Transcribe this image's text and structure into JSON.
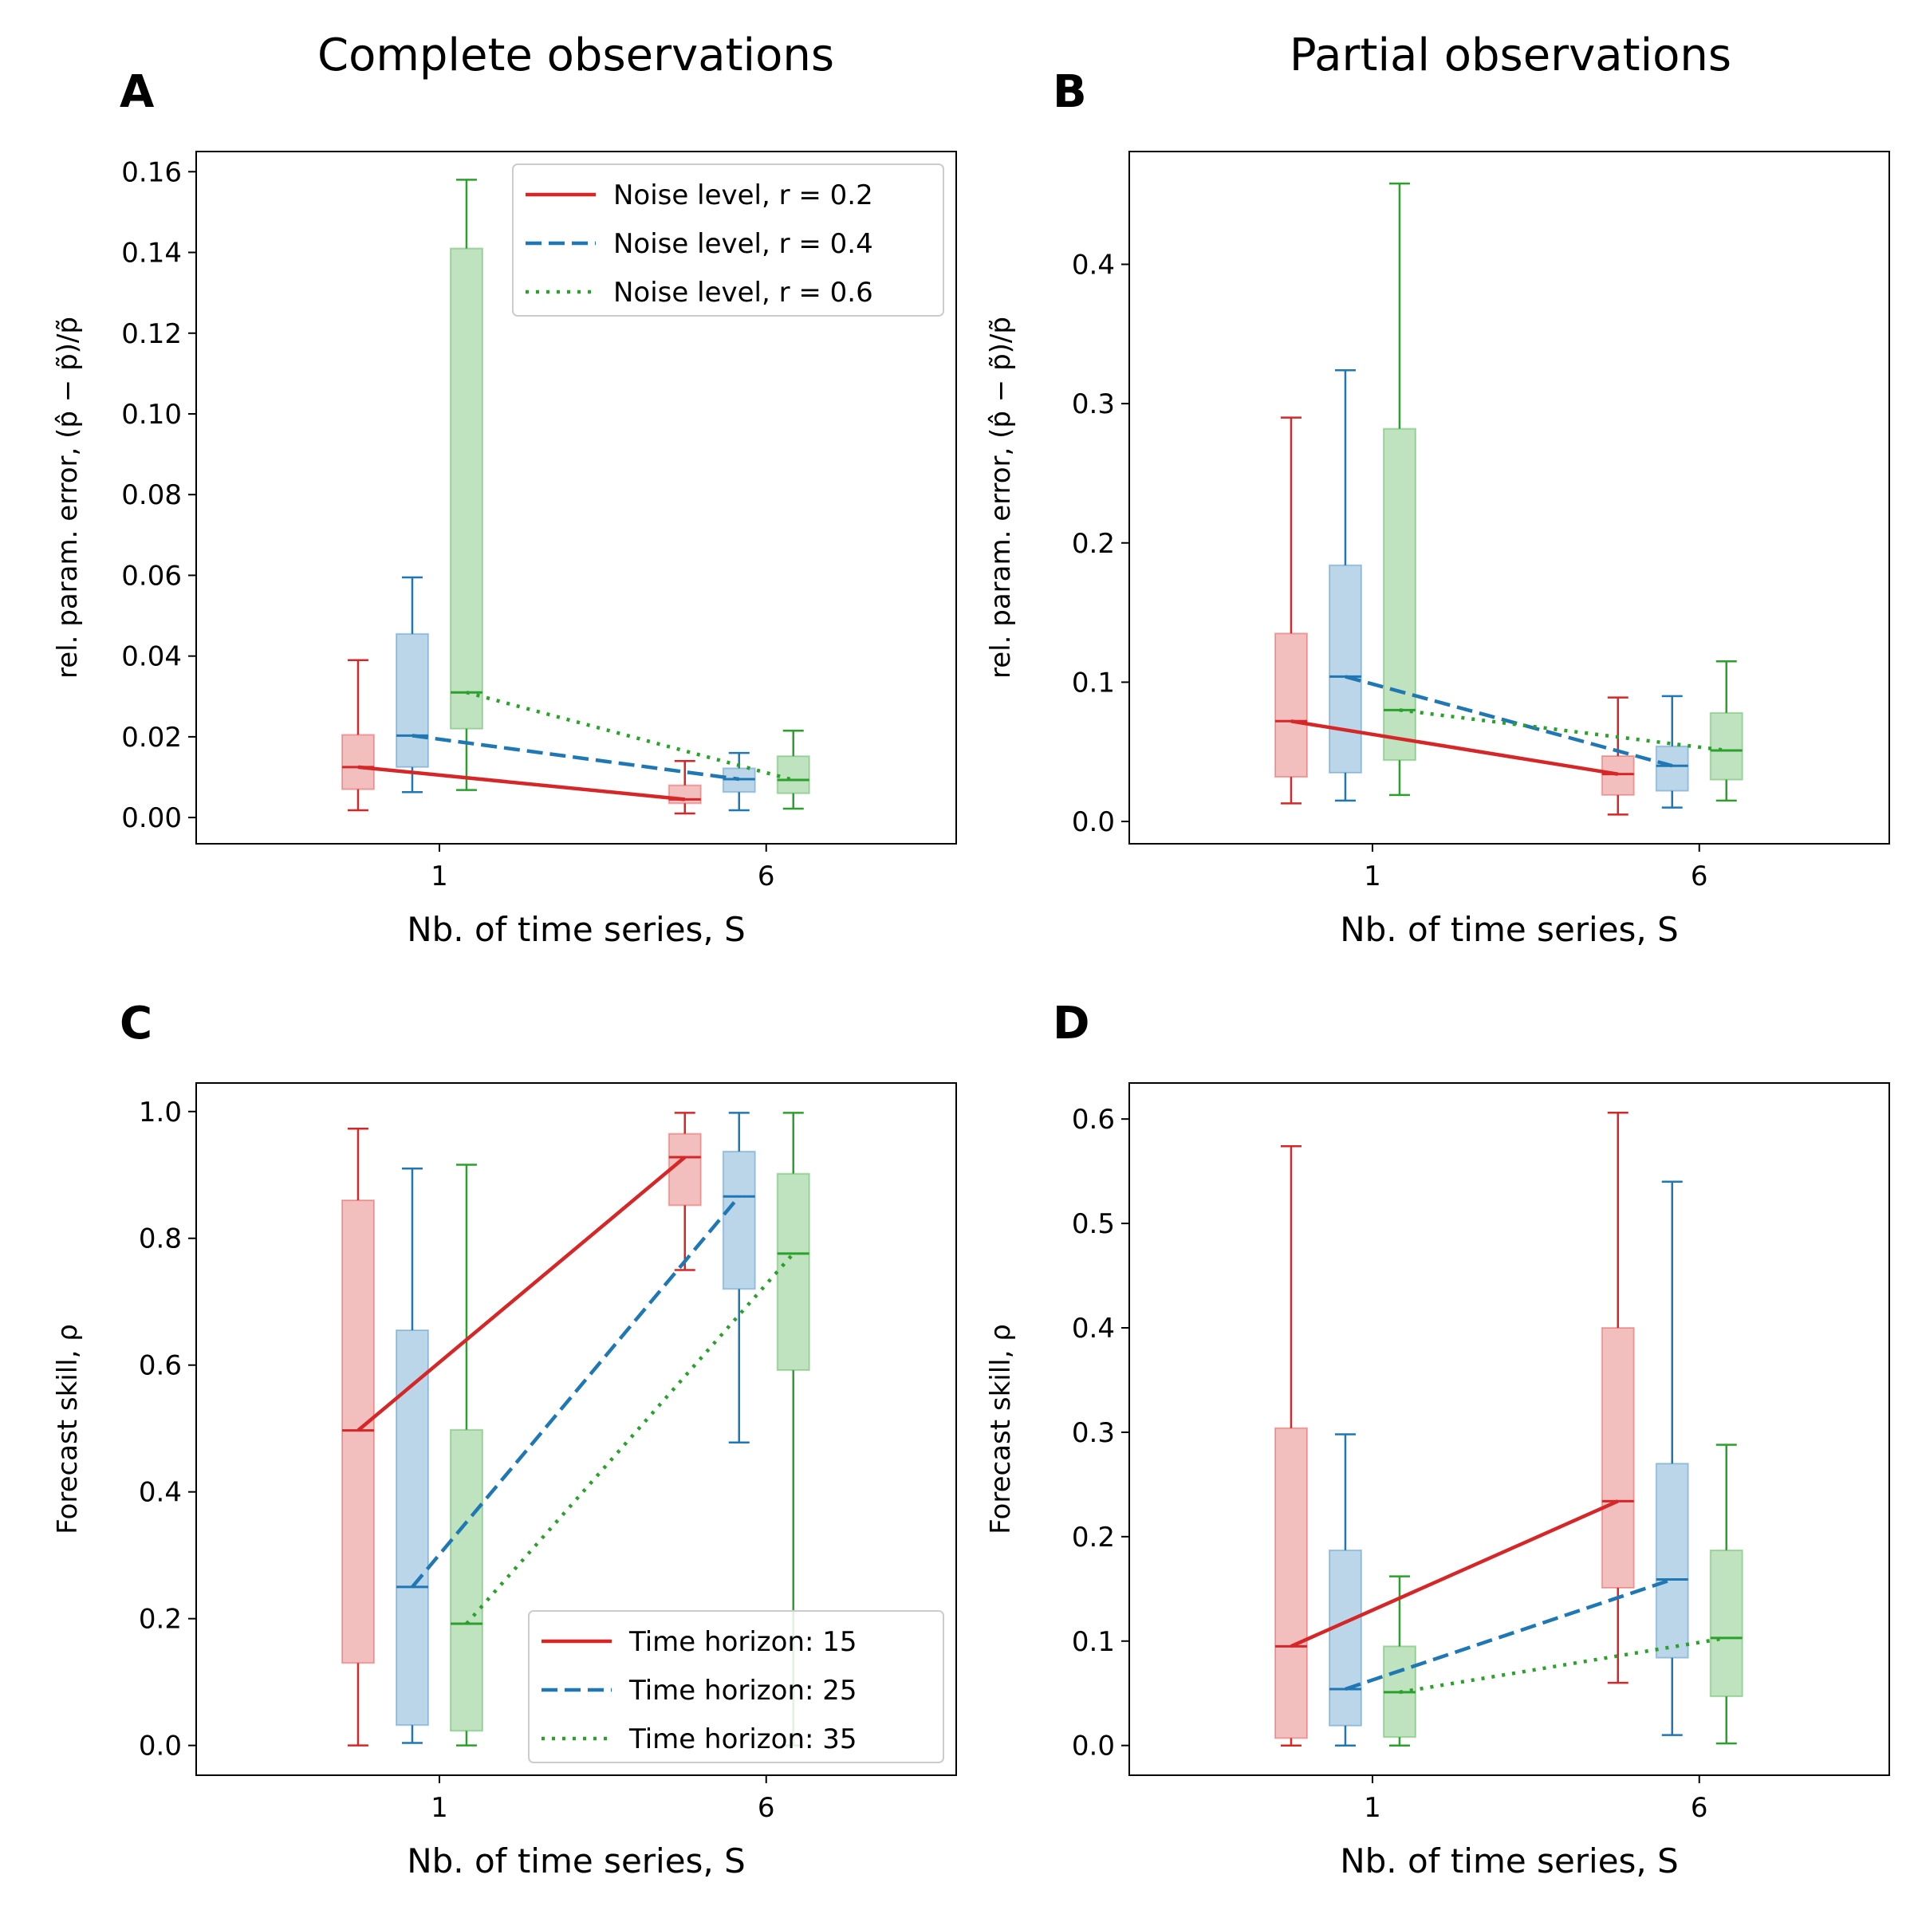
{
  "column_titles": [
    "Complete observations",
    "Partial observations"
  ],
  "chart_data": [
    {
      "panel": "A",
      "type": "box",
      "xlabel": "Nb. of time series, S",
      "ylabel": "rel. param. error, (p̂ − p̃)/p̃",
      "categories": [
        "1",
        "6"
      ],
      "ylim": [
        -0.0065,
        0.165
      ],
      "yticks": [
        0.0,
        0.02,
        0.04,
        0.06,
        0.08,
        0.1,
        0.12,
        0.14,
        0.16
      ],
      "ytick_labels": [
        "0.00",
        "0.02",
        "0.04",
        "0.06",
        "0.08",
        "0.10",
        "0.12",
        "0.14",
        "0.16"
      ],
      "legend": {
        "placement": "top-right",
        "entries": [
          "Noise level, r = 0.2",
          "Noise level, r = 0.4",
          "Noise level, r = 0.6"
        ]
      },
      "series": [
        {
          "name": "Noise level, r = 0.2",
          "color": "#d62728",
          "dash": "solid",
          "boxes": [
            {
              "low": 0.0018,
              "q1": 0.007,
              "median": 0.0125,
              "q3": 0.0205,
              "high": 0.039
            },
            {
              "low": 0.001,
              "q1": 0.0035,
              "median": 0.0045,
              "q3": 0.008,
              "high": 0.014
            }
          ]
        },
        {
          "name": "Noise level, r = 0.4",
          "color": "#1f77b4",
          "dash": "dashed",
          "boxes": [
            {
              "low": 0.0063,
              "q1": 0.0125,
              "median": 0.0203,
              "q3": 0.0455,
              "high": 0.0595
            },
            {
              "low": 0.0018,
              "q1": 0.0063,
              "median": 0.0095,
              "q3": 0.0122,
              "high": 0.016
            }
          ]
        },
        {
          "name": "Noise level, r = 0.6",
          "color": "#2ca02c",
          "dash": "dotted",
          "boxes": [
            {
              "low": 0.0068,
              "q1": 0.022,
              "median": 0.031,
              "q3": 0.141,
              "high": 0.158
            },
            {
              "low": 0.0022,
              "q1": 0.006,
              "median": 0.0093,
              "q3": 0.0152,
              "high": 0.0215
            }
          ]
        }
      ]
    },
    {
      "panel": "B",
      "type": "box",
      "xlabel": "Nb. of time series, S",
      "ylabel": "rel. param. error, (p̂ − p̃)/p̃",
      "categories": [
        "1",
        "6"
      ],
      "ylim": [
        -0.016,
        0.481
      ],
      "yticks": [
        0.0,
        0.1,
        0.2,
        0.3,
        0.4
      ],
      "ytick_labels": [
        "0.0",
        "0.1",
        "0.2",
        "0.3",
        "0.4"
      ],
      "series": [
        {
          "name": "Noise level, r = 0.2",
          "color": "#d62728",
          "dash": "solid",
          "boxes": [
            {
              "low": 0.013,
              "q1": 0.032,
              "median": 0.072,
              "q3": 0.135,
              "high": 0.29
            },
            {
              "low": 0.005,
              "q1": 0.019,
              "median": 0.034,
              "q3": 0.047,
              "high": 0.089
            }
          ]
        },
        {
          "name": "Noise level, r = 0.4",
          "color": "#1f77b4",
          "dash": "dashed",
          "boxes": [
            {
              "low": 0.015,
              "q1": 0.035,
              "median": 0.104,
              "q3": 0.184,
              "high": 0.324
            },
            {
              "low": 0.01,
              "q1": 0.022,
              "median": 0.04,
              "q3": 0.054,
              "high": 0.09
            }
          ]
        },
        {
          "name": "Noise level, r = 0.6",
          "color": "#2ca02c",
          "dash": "dotted",
          "boxes": [
            {
              "low": 0.019,
              "q1": 0.044,
              "median": 0.08,
              "q3": 0.282,
              "high": 0.458
            },
            {
              "low": 0.015,
              "q1": 0.03,
              "median": 0.051,
              "q3": 0.078,
              "high": 0.115
            }
          ]
        }
      ]
    },
    {
      "panel": "C",
      "type": "box",
      "xlabel": "Nb. of time series, S",
      "ylabel": "Forecast skill, ρ",
      "categories": [
        "1",
        "6"
      ],
      "ylim": [
        -0.047,
        1.045
      ],
      "yticks": [
        0.0,
        0.2,
        0.4,
        0.6,
        0.8,
        1.0
      ],
      "ytick_labels": [
        "0.0",
        "0.2",
        "0.4",
        "0.6",
        "0.8",
        "1.0"
      ],
      "legend": {
        "placement": "bottom-right",
        "entries": [
          "Time horizon: 15",
          "Time horizon: 25",
          "Time horizon: 35"
        ]
      },
      "series": [
        {
          "name": "Time horizon: 15",
          "color": "#d62728",
          "dash": "solid",
          "boxes": [
            {
              "low": 0.0,
              "q1": 0.13,
              "median": 0.497,
              "q3": 0.86,
              "high": 0.973
            },
            {
              "low": 0.75,
              "q1": 0.852,
              "median": 0.928,
              "q3": 0.965,
              "high": 0.998
            }
          ]
        },
        {
          "name": "Time horizon: 25",
          "color": "#1f77b4",
          "dash": "dashed",
          "boxes": [
            {
              "low": 0.004,
              "q1": 0.032,
              "median": 0.25,
              "q3": 0.655,
              "high": 0.91
            },
            {
              "low": 0.478,
              "q1": 0.72,
              "median": 0.866,
              "q3": 0.937,
              "high": 0.998
            }
          ]
        },
        {
          "name": "Time horizon: 35",
          "color": "#2ca02c",
          "dash": "dotted",
          "boxes": [
            {
              "low": 0.0,
              "q1": 0.023,
              "median": 0.192,
              "q3": 0.498,
              "high": 0.916
            },
            {
              "low": 0.0,
              "q1": 0.592,
              "median": 0.776,
              "q3": 0.902,
              "high": 0.998
            }
          ]
        }
      ]
    },
    {
      "panel": "D",
      "type": "box",
      "xlabel": "Nb. of time series, S",
      "ylabel": "Forecast skill, ρ",
      "categories": [
        "1",
        "6"
      ],
      "ylim": [
        -0.0285,
        0.6345
      ],
      "yticks": [
        0.0,
        0.1,
        0.2,
        0.3,
        0.4,
        0.5,
        0.6
      ],
      "ytick_labels": [
        "0.0",
        "0.1",
        "0.2",
        "0.3",
        "0.4",
        "0.5",
        "0.6"
      ],
      "series": [
        {
          "name": "Time horizon: 15",
          "color": "#d62728",
          "dash": "solid",
          "boxes": [
            {
              "low": 0.0,
              "q1": 0.007,
              "median": 0.095,
              "q3": 0.304,
              "high": 0.574
            },
            {
              "low": 0.06,
              "q1": 0.151,
              "median": 0.234,
              "q3": 0.4,
              "high": 0.606
            }
          ]
        },
        {
          "name": "Time horizon: 25",
          "color": "#1f77b4",
          "dash": "dashed",
          "boxes": [
            {
              "low": 0.0,
              "q1": 0.019,
              "median": 0.054,
              "q3": 0.187,
              "high": 0.298
            },
            {
              "low": 0.01,
              "q1": 0.084,
              "median": 0.159,
              "q3": 0.27,
              "high": 0.54
            }
          ]
        },
        {
          "name": "Time horizon: 35",
          "color": "#2ca02c",
          "dash": "dotted",
          "boxes": [
            {
              "low": 0.0,
              "q1": 0.008,
              "median": 0.051,
              "q3": 0.095,
              "high": 0.162
            },
            {
              "low": 0.002,
              "q1": 0.047,
              "median": 0.103,
              "q3": 0.187,
              "high": 0.288
            }
          ]
        }
      ]
    }
  ]
}
